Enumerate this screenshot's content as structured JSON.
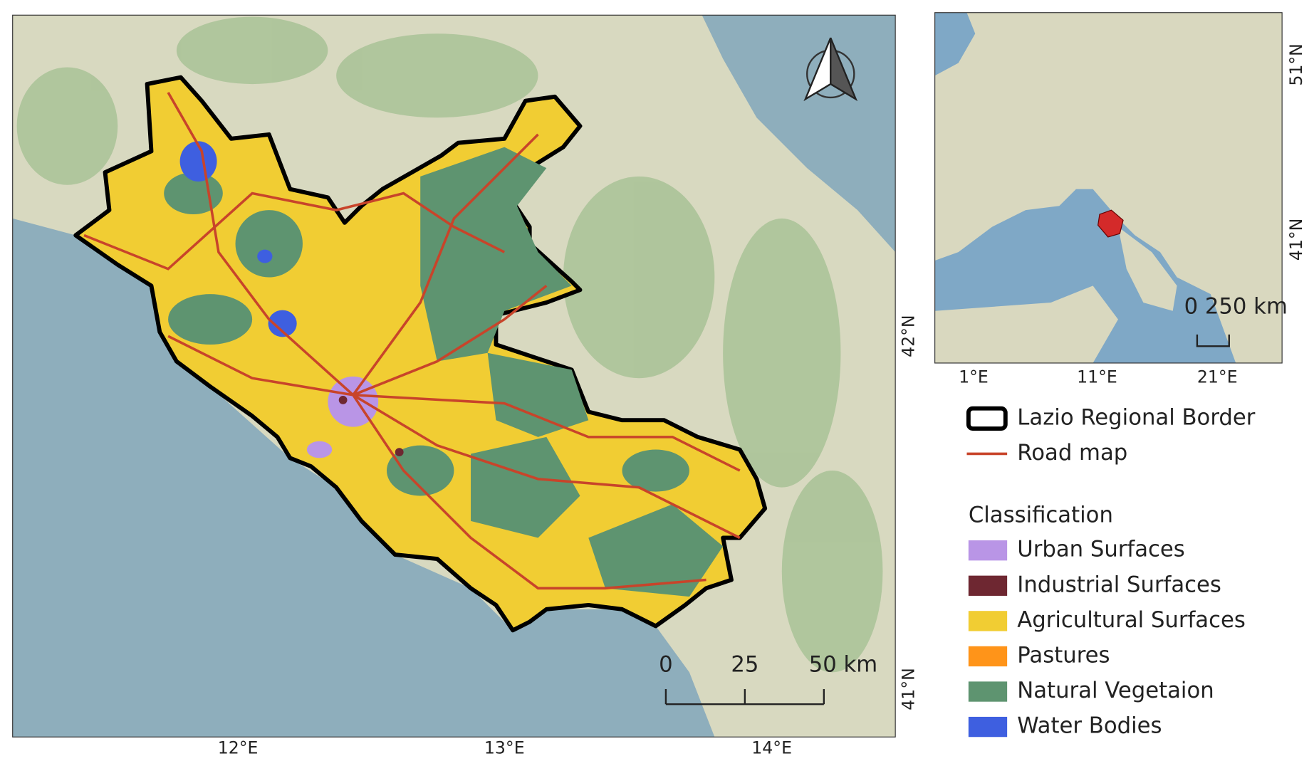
{
  "main_map": {
    "lon_labels": [
      "12°E",
      "13°E",
      "14°E"
    ],
    "lat_labels": [
      "42°N",
      "41°N"
    ],
    "scale_bar": [
      "0",
      "25",
      "50 km"
    ]
  },
  "inset_map": {
    "lon_labels": [
      "1°E",
      "11°E",
      "21°E"
    ],
    "lat_labels": [
      "51°N",
      "41°N"
    ],
    "scale_label": "0 250 km"
  },
  "legend": {
    "border": "Lazio Regional Border",
    "road": "Road map",
    "classification_title": "Classification",
    "classes": [
      {
        "label": "Urban Surfaces",
        "color": "#b995e6"
      },
      {
        "label": "Industrial Surfaces",
        "color": "#6e2731"
      },
      {
        "label": "Agricultural Surfaces",
        "color": "#f1cd33"
      },
      {
        "label": "Pastures",
        "color": "#ff9419"
      },
      {
        "label": "Natural Vegetaion",
        "color": "#5e9470"
      },
      {
        "label": "Water Bodies",
        "color": "#3e5fe0"
      }
    ]
  }
}
